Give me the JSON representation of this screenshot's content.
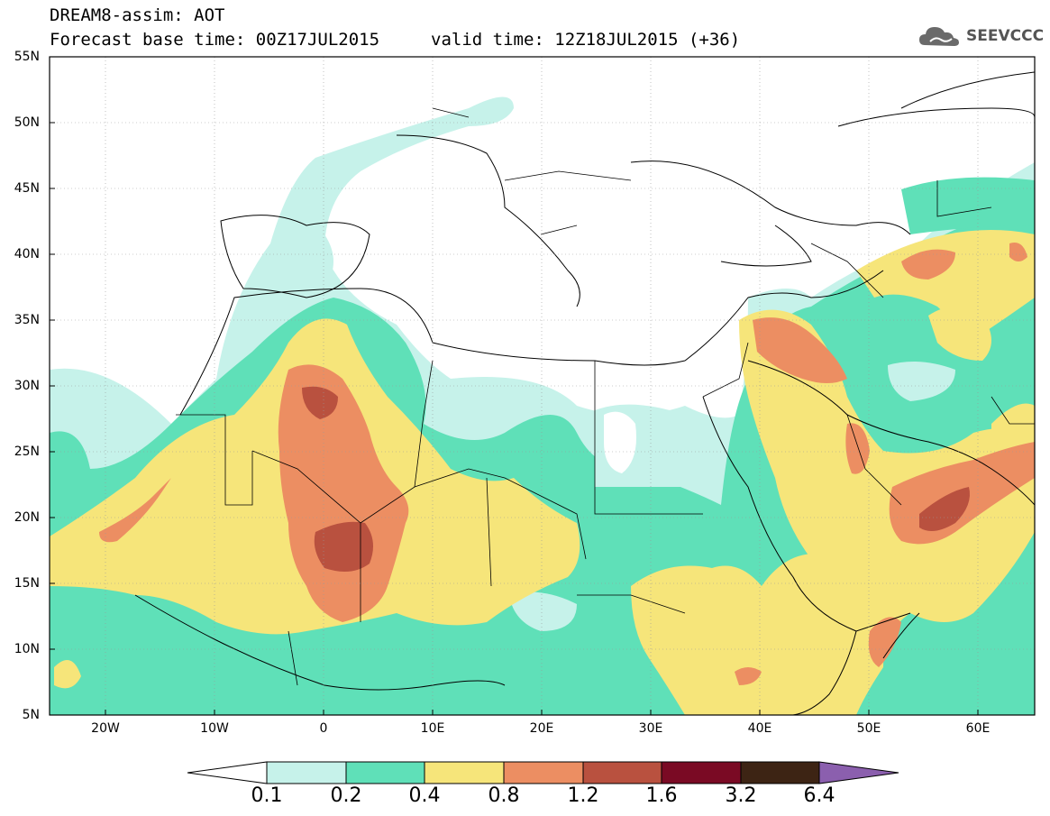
{
  "header": {
    "title": "DREAM8-assim: AOT",
    "forecast_base": "Forecast base time: 00Z17JUL2015",
    "valid_time": "valid time: 12Z18JUL2015 (+36)",
    "logo_text": "SEEVCCC"
  },
  "map": {
    "projection": "lat-lon",
    "lon_range": [
      -25,
      65
    ],
    "lat_range": [
      5,
      55
    ],
    "lat_labels": [
      "55N",
      "50N",
      "45N",
      "40N",
      "35N",
      "30N",
      "25N",
      "20N",
      "15N",
      "10N",
      "5N"
    ],
    "lon_labels": [
      "20W",
      "10W",
      "0",
      "10E",
      "20E",
      "30E",
      "40E",
      "50E",
      "60E"
    ],
    "variable": "AOT"
  },
  "colorbar": {
    "levels": [
      "0.1",
      "0.2",
      "0.4",
      "0.8",
      "1.2",
      "1.6",
      "3.2",
      "6.4"
    ],
    "colors": [
      "#c6f2ea",
      "#5fe0b8",
      "#f6e57a",
      "#ec8e62",
      "#b9513f",
      "#7a0a24",
      "#3d2414",
      "#8b5fae"
    ],
    "under_color": "#ffffff"
  },
  "colors": {
    "c01": "#c6f2ea",
    "c02": "#5fe0b8",
    "c04": "#f6e57a",
    "c08": "#ec8e62",
    "c12": "#b9513f"
  }
}
